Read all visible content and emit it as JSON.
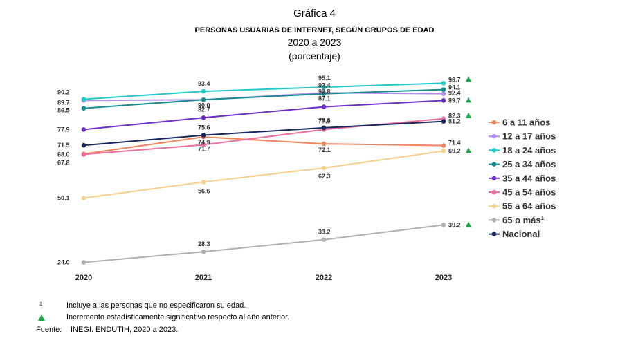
{
  "header": {
    "graph_no": "Gráfica 4",
    "title": "PERSONAS USUARIAS DE INTERNET, SEGÚN GRUPOS DE EDAD",
    "period": "2020 a 2023",
    "unit": "(porcentaje)"
  },
  "footnotes": {
    "note1_mark": "1",
    "note1": "Incluye a las personas que no especificaron su edad.",
    "note2": "Incremento estadísticamente significativo respecto al año anterior.",
    "source_label": "Fuente:",
    "source": "INEGI. ENDUTIH, 2020 a 2023."
  },
  "chart_data": {
    "type": "line",
    "title": "PERSONAS USUARIAS DE INTERNET, SEGÚN GRUPOS DE EDAD",
    "xlabel": "",
    "ylabel": "",
    "ylim": [
      20,
      100
    ],
    "grid": false,
    "legend_position": "right",
    "categories": [
      "2020",
      "2021",
      "2022",
      "2023"
    ],
    "series": [
      {
        "name": "6 a 11 años",
        "color": "#f0845a",
        "values": [
          68.0,
          74.9,
          72.1,
          71.4
        ],
        "labels": [
          "68.0",
          "74.9",
          "72.1",
          "71.4"
        ],
        "sig": [
          false,
          false,
          false,
          false
        ]
      },
      {
        "name": "12 a 17 años",
        "color": "#b58ef0",
        "values": [
          89.7,
          90.0,
          92.8,
          92.4
        ],
        "labels": [
          "89.7",
          "90.0",
          "92.8",
          "92.4"
        ],
        "sig": [
          false,
          false,
          false,
          false
        ]
      },
      {
        "name": "18 a 24 años",
        "color": "#22c7c7",
        "values": [
          90.2,
          93.4,
          95.1,
          96.7
        ],
        "labels": [
          "90.2",
          "93.4",
          "95.1",
          "96.7"
        ],
        "sig": [
          false,
          false,
          false,
          true
        ]
      },
      {
        "name": "25 a 34 años",
        "color": "#178c8c",
        "values": [
          86.5,
          90.0,
          92.4,
          94.1
        ],
        "labels": [
          "86.5",
          "",
          "92.4",
          "94.1"
        ],
        "sig": [
          false,
          false,
          false,
          false
        ]
      },
      {
        "name": "35 a 44 años",
        "color": "#6a2fc6",
        "values": [
          77.9,
          82.7,
          87.1,
          89.7
        ],
        "labels": [
          "77.9",
          "82.7",
          "87.1",
          "89.7"
        ],
        "sig": [
          false,
          false,
          false,
          true
        ]
      },
      {
        "name": "45 a 54 años",
        "color": "#ec6f9e",
        "values": [
          67.8,
          71.7,
          77.9,
          82.3
        ],
        "labels": [
          "67.8",
          "71.7",
          "77.9",
          "82.3"
        ],
        "sig": [
          false,
          false,
          false,
          true
        ]
      },
      {
        "name": "55 a 64 años",
        "color": "#f8d08c",
        "values": [
          50.1,
          56.6,
          62.3,
          69.2
        ],
        "labels": [
          "50.1",
          "56.6",
          "62.3",
          "69.2"
        ],
        "sig": [
          false,
          false,
          false,
          true
        ]
      },
      {
        "name": "65 o más",
        "legend_sup": "1",
        "color": "#b0b0b0",
        "values": [
          24.0,
          28.3,
          33.2,
          39.2
        ],
        "labels": [
          "24.0",
          "28.3",
          "33.2",
          "39.2"
        ],
        "sig": [
          false,
          false,
          false,
          true
        ]
      },
      {
        "name": "Nacional",
        "color": "#16275e",
        "values": [
          71.5,
          75.6,
          78.6,
          81.2
        ],
        "labels": [
          "71.5",
          "75.6",
          "78.6",
          "81.2"
        ],
        "sig": [
          false,
          false,
          false,
          false
        ]
      }
    ]
  }
}
